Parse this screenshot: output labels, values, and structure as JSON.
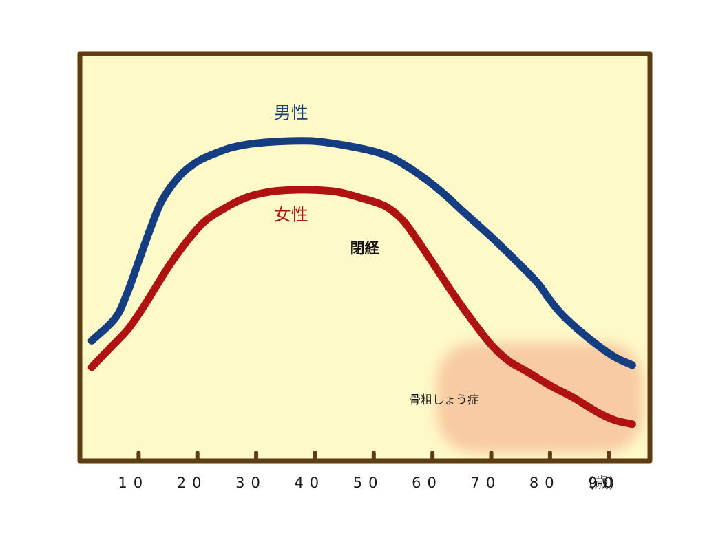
{
  "colors": {
    "background": "#fef9c8",
    "frame": "#5e3d10",
    "male": "#153e82",
    "female": "#b01212",
    "zone": "#f8c9a0"
  },
  "chart_data": {
    "type": "line",
    "title": "",
    "xlabel": "",
    "ylabel": "",
    "x_unit_label": "(歳)",
    "xlim": [
      0,
      97
    ],
    "ylim": [
      0,
      100
    ],
    "y_ticks_shown": false,
    "grid": false,
    "x_ticks": [
      10,
      20,
      30,
      40,
      50,
      60,
      70,
      80,
      90
    ],
    "x_tick_labels": [
      "10",
      "20",
      "30",
      "40",
      "50",
      "60",
      "70",
      "80",
      "90"
    ],
    "series": [
      {
        "name": "男性",
        "color": "#153e82",
        "x": [
          2,
          6,
          8,
          10,
          12,
          14,
          17,
          20,
          23,
          26,
          30,
          35,
          40,
          45,
          50,
          53,
          56,
          59,
          62,
          65,
          70,
          75,
          78,
          80,
          82,
          85,
          88,
          91,
          94
        ],
        "y": [
          29.5,
          35,
          41,
          49,
          57,
          64,
          70,
          73.5,
          75.5,
          77,
          78,
          78.5,
          78.5,
          77.5,
          76,
          74.5,
          72,
          69,
          65.5,
          61.5,
          55,
          48,
          43.5,
          39.5,
          36,
          32,
          28.5,
          25.5,
          23.5
        ]
      },
      {
        "name": "女性",
        "color": "#b01212",
        "x": [
          2,
          5,
          8,
          10,
          12,
          15,
          18,
          21,
          24,
          28,
          32,
          36,
          40,
          44,
          48,
          52,
          55,
          58,
          61,
          64,
          67,
          70,
          73,
          76,
          80,
          84,
          88,
          91,
          94
        ],
        "y": [
          23,
          27.5,
          32,
          36,
          40.5,
          47.5,
          53.5,
          58.5,
          61.5,
          64.5,
          66,
          66.5,
          66.5,
          66,
          64.5,
          62.5,
          59,
          53,
          46.5,
          40,
          34,
          28.5,
          24.5,
          22,
          18.5,
          15.5,
          12,
          10,
          9
        ]
      }
    ],
    "series_labels": {
      "male": {
        "text": "男性",
        "at": [
          33,
          84
        ]
      },
      "female": {
        "text": "女性",
        "at": [
          33,
          59
        ]
      }
    },
    "annotations": [
      {
        "text": "閉経",
        "at": [
          46,
          51
        ]
      },
      {
        "text": "骨粗しょう症",
        "at": [
          56,
          14
        ]
      }
    ],
    "highlight_zone": {
      "label": "骨粗しょう症",
      "x_range": [
        60,
        97
      ],
      "y_range": [
        1,
        30
      ]
    }
  }
}
